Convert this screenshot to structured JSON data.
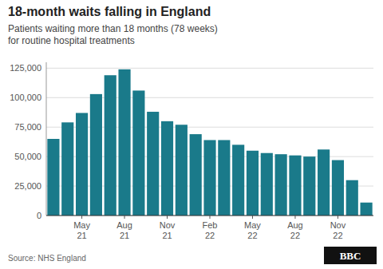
{
  "chart_data": {
    "type": "bar",
    "title": "18-month waits falling in England",
    "subtitle": "Patients waiting more than 18 months (78 weeks)\nfor routine hospital treatments",
    "source": "Source: NHS England",
    "logo": "BBC",
    "categories": [
      null,
      null,
      "May\n21",
      null,
      null,
      "Aug\n21",
      null,
      null,
      "Nov\n21",
      null,
      null,
      "Feb\n22",
      null,
      null,
      "May\n22",
      null,
      null,
      "Aug\n22",
      null,
      null,
      "Nov\n22",
      null,
      null
    ],
    "values": [
      65000,
      79000,
      87000,
      103000,
      119000,
      124000,
      106000,
      88000,
      80000,
      77000,
      69000,
      64000,
      64000,
      60000,
      55000,
      53000,
      52000,
      51000,
      50000,
      56000,
      47000,
      30000,
      11000
    ],
    "color": "#1a7a8a",
    "ylim": [
      0,
      130000
    ],
    "yticks": [
      0,
      {
        "value": 25000,
        "label": "25,000"
      },
      {
        "value": 50000,
        "label": "50,000"
      },
      {
        "value": 75000,
        "label": "75,000"
      },
      {
        "value": 100000,
        "label": "100,000"
      },
      {
        "value": 125000,
        "label": "125,000"
      }
    ],
    "grid": true
  }
}
